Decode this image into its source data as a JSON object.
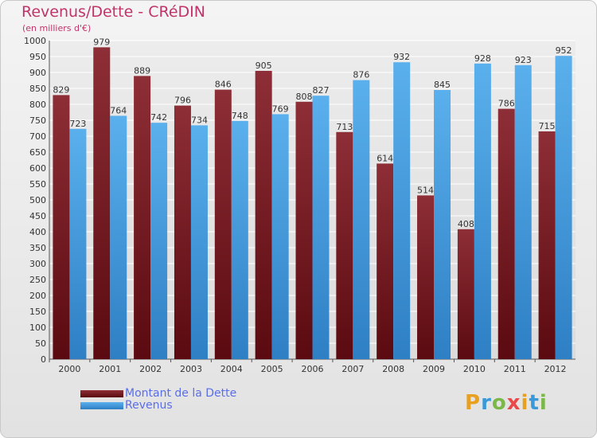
{
  "chart_data": {
    "type": "bar",
    "title": "Revenus/Dette - CRéDIN",
    "subtitle": "(en milliers d'€)",
    "categories": [
      "2000",
      "2001",
      "2002",
      "2003",
      "2004",
      "2005",
      "2006",
      "2007",
      "2008",
      "2009",
      "2010",
      "2011",
      "2012"
    ],
    "series": [
      {
        "name": "Montant de la Dette",
        "color": "#7a1a22",
        "values": [
          829,
          979,
          889,
          796,
          846,
          905,
          808,
          713,
          614,
          514,
          408,
          786,
          715
        ]
      },
      {
        "name": "Revenus",
        "color": "#4a9fe0",
        "values": [
          723,
          764,
          742,
          734,
          748,
          769,
          827,
          876,
          932,
          845,
          928,
          923,
          952
        ]
      }
    ],
    "ylim": [
      0,
      1000
    ],
    "yticks": [
      0,
      50,
      100,
      150,
      200,
      250,
      300,
      350,
      400,
      450,
      500,
      550,
      600,
      650,
      700,
      750,
      800,
      850,
      900,
      950,
      1000
    ],
    "grid": true,
    "legend": "bottom-left"
  },
  "logo": {
    "letters": [
      "P",
      "r",
      "o",
      "x",
      "i",
      "t",
      "i"
    ],
    "colors": [
      "#e8a020",
      "#3a9ad9",
      "#7ab848",
      "#e84a4a",
      "#e8a020",
      "#3a9ad9",
      "#7ab848"
    ]
  }
}
